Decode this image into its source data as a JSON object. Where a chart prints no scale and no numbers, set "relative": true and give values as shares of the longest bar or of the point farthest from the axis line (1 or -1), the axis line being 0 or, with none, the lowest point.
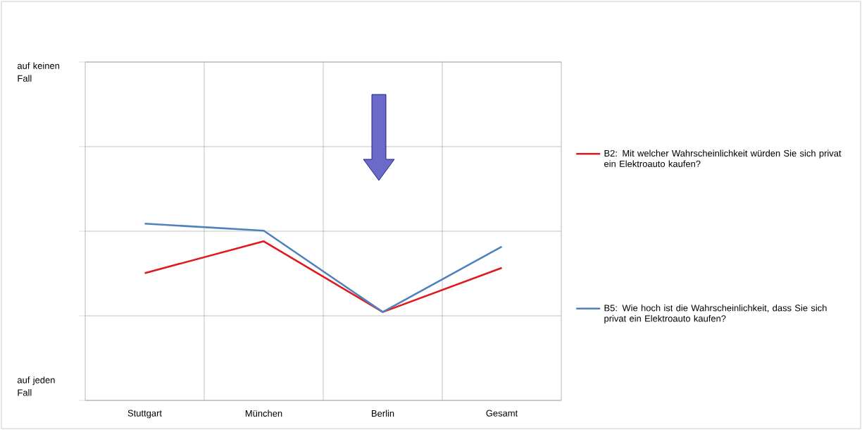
{
  "chart_data": {
    "type": "line",
    "categories": [
      "Stuttgart",
      "München",
      "Berlin",
      "Gesamt"
    ],
    "series": [
      {
        "name": "B2: Mit welcher Wahrscheinlichkeit würden Sie sich privat ein Elektroauto kaufen?",
        "color": "#e0191e",
        "values": [
          0.72,
          0.9,
          0.5,
          0.75
        ]
      },
      {
        "name": "B5:  Wie hoch ist die Wahrscheinlichkeit, dass Sie sich privat ein Elektroauto kaufen?",
        "color": "#4f81bd",
        "values": [
          1,
          0.96,
          0.5,
          0.87
        ]
      }
    ],
    "relative": true,
    "annotations": [
      "auf keinen Fall",
      "auf jeden Fall"
    ],
    "grid": true,
    "legend": "right",
    "marker": "none",
    "line_style": "solid"
  }
}
